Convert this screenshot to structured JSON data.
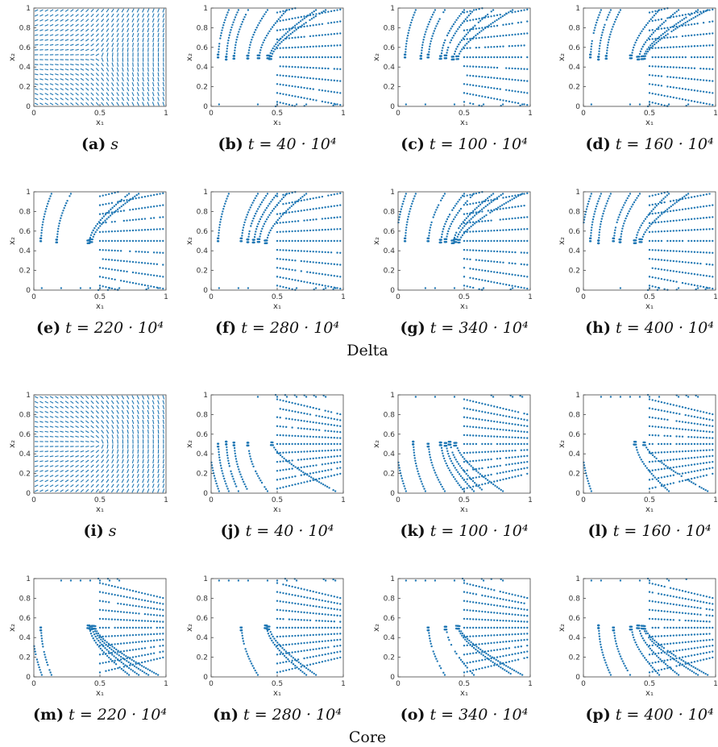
{
  "figure": {
    "groups": [
      {
        "label": "Delta",
        "panels": [
          {
            "letter": "(a)",
            "caption": "s",
            "kind": "field"
          },
          {
            "letter": "(b)",
            "caption": "t = 40 · 10⁴",
            "kind": "points"
          },
          {
            "letter": "(c)",
            "caption": "t = 100 · 10⁴",
            "kind": "points"
          },
          {
            "letter": "(d)",
            "caption": "t = 160 · 10⁴",
            "kind": "points"
          },
          {
            "letter": "(e)",
            "caption": "t = 220 · 10⁴",
            "kind": "points"
          },
          {
            "letter": "(f)",
            "caption": "t = 280 · 10⁴",
            "kind": "points"
          },
          {
            "letter": "(g)",
            "caption": "t = 340 · 10⁴",
            "kind": "points"
          },
          {
            "letter": "(h)",
            "caption": "t = 400 · 10⁴",
            "kind": "points"
          }
        ]
      },
      {
        "label": "Core",
        "panels": [
          {
            "letter": "(i)",
            "caption": "s",
            "kind": "field"
          },
          {
            "letter": "(j)",
            "caption": "t = 40 · 10⁴",
            "kind": "points"
          },
          {
            "letter": "(k)",
            "caption": "t = 100 · 10⁴",
            "kind": "points"
          },
          {
            "letter": "(l)",
            "caption": "t = 160 · 10⁴",
            "kind": "points"
          },
          {
            "letter": "(m)",
            "caption": "t = 220 · 10⁴",
            "kind": "points"
          },
          {
            "letter": "(n)",
            "caption": "t = 280 · 10⁴",
            "kind": "points"
          },
          {
            "letter": "(o)",
            "caption": "t = 340 · 10⁴",
            "kind": "points"
          },
          {
            "letter": "(p)",
            "caption": "t = 400 · 10⁴",
            "kind": "points"
          }
        ]
      }
    ],
    "axes": {
      "xlabel": "x₁",
      "ylabel": "x₂",
      "xticks": [
        "0",
        "0.5",
        "1"
      ],
      "yticks": [
        "0",
        "0.2",
        "0.4",
        "0.6",
        "0.8",
        "1"
      ],
      "xlim": [
        0,
        1
      ],
      "ylim": [
        0,
        1
      ]
    },
    "colors": {
      "marks": "#1f77b4",
      "axis": "#444444"
    }
  }
}
